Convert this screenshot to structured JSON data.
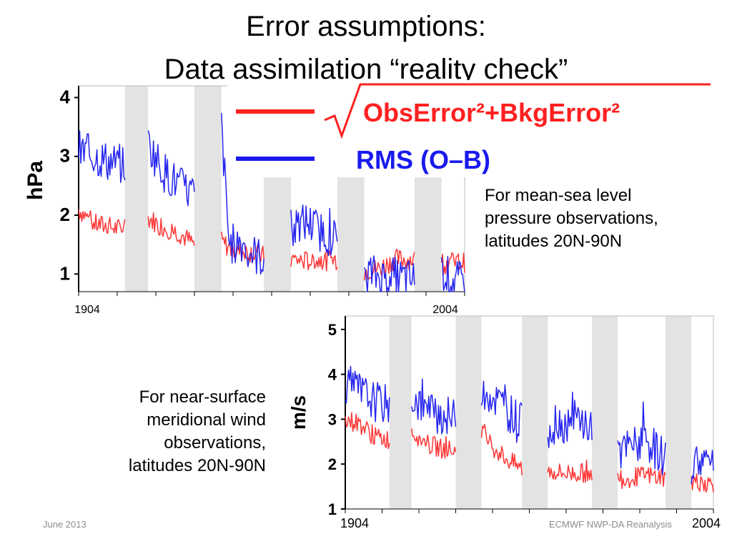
{
  "slide": {
    "title_line1": "Error assumptions:",
    "title_line2": "Data assimilation “reality check”",
    "caption_top": [
      "For mean-sea level",
      "pressure observations,",
      "latitudes 20N-90N"
    ],
    "caption_bottom": [
      "For near-surface",
      "meridional wind",
      "observations,",
      "latitudes 20N-90N"
    ],
    "footer_date": "June 2013",
    "footer_right": "ECMWF NWP-DA Reanalysis"
  },
  "colors": {
    "red": "#ff2020",
    "blue": "#1a1aee",
    "shade": "#e3e3e3"
  },
  "chart_data": [
    {
      "type": "line",
      "title": "",
      "ylabel": "hPa",
      "xlabel": "",
      "x_range": [
        1904,
        2004
      ],
      "x_tick_labels": [
        "1904",
        "2004"
      ],
      "ylim": [
        0.7,
        4.2
      ],
      "y_ticks": [
        1,
        2,
        3,
        4
      ],
      "legend_position": "top-right",
      "legend_text": [
        "√ObsError²+BkgError²",
        "RMS (O–B)"
      ],
      "shaded_periods": [
        [
          1916,
          1922
        ],
        [
          1934,
          1941
        ],
        [
          1952,
          1959
        ],
        [
          1971,
          1978
        ],
        [
          1991,
          1998
        ]
      ],
      "series": [
        {
          "name": "√ObsError²+BkgError²",
          "segments": [
            {
              "x": [
                1904,
                1908,
                1912,
                1916
              ],
              "y": [
                2.1,
                1.85,
                1.8,
                1.75
              ]
            },
            {
              "x": [
                1922,
                1926,
                1930,
                1934
              ],
              "y": [
                1.95,
                1.8,
                1.7,
                1.5
              ]
            },
            {
              "x": [
                1941,
                1944,
                1948,
                1952
              ],
              "y": [
                1.55,
                1.4,
                1.38,
                1.3
              ]
            },
            {
              "x": [
                1959,
                1963,
                1967,
                1971
              ],
              "y": [
                1.25,
                1.22,
                1.22,
                1.25
              ]
            },
            {
              "x": [
                1978,
                1982,
                1986,
                1991
              ],
              "y": [
                1.05,
                1.1,
                1.25,
                1.25
              ]
            },
            {
              "x": [
                1998,
                2001,
                2004
              ],
              "y": [
                1.2,
                1.2,
                1.2
              ]
            }
          ]
        },
        {
          "name": "RMS (O–B)",
          "segments": [
            {
              "x": [
                1904,
                1908,
                1912,
                1916
              ],
              "y": [
                3.1,
                3.0,
                2.9,
                2.85
              ]
            },
            {
              "x": [
                1922,
                1926,
                1930,
                1934
              ],
              "y": [
                3.2,
                2.75,
                2.5,
                2.35
              ]
            },
            {
              "x": [
                1941,
                1943,
                1946,
                1949,
                1952
              ],
              "y": [
                3.5,
                1.5,
                1.55,
                1.35,
                1.25
              ]
            },
            {
              "x": [
                1959,
                1963,
                1967,
                1971
              ],
              "y": [
                1.7,
                1.9,
                1.7,
                1.6
              ]
            },
            {
              "x": [
                1978,
                1982,
                1986,
                1991
              ],
              "y": [
                1.05,
                0.95,
                0.95,
                0.9
              ]
            },
            {
              "x": [
                1998,
                2001,
                2004
              ],
              "y": [
                1.05,
                0.9,
                0.85
              ]
            }
          ]
        }
      ]
    },
    {
      "type": "line",
      "title": "",
      "ylabel": "m/s",
      "xlabel": "",
      "x_range": [
        1904,
        2004
      ],
      "x_tick_labels": [
        "1904",
        "2004"
      ],
      "ylim": [
        1,
        5.3
      ],
      "y_ticks": [
        1,
        2,
        3,
        4,
        5
      ],
      "shaded_periods": [
        [
          1916,
          1922
        ],
        [
          1934,
          1941
        ],
        [
          1952,
          1959
        ],
        [
          1971,
          1978
        ],
        [
          1991,
          1998
        ]
      ],
      "series": [
        {
          "name": "√ObsError²+BkgError²",
          "segments": [
            {
              "x": [
                1904,
                1908,
                1912,
                1916
              ],
              "y": [
                3.0,
                2.9,
                2.6,
                2.55
              ]
            },
            {
              "x": [
                1922,
                1926,
                1930,
                1934
              ],
              "y": [
                2.75,
                2.45,
                2.35,
                2.3
              ]
            },
            {
              "x": [
                1941,
                1944,
                1948,
                1952
              ],
              "y": [
                2.8,
                2.4,
                2.1,
                1.9
              ]
            },
            {
              "x": [
                1959,
                1963,
                1967,
                1971
              ],
              "y": [
                1.85,
                1.8,
                1.8,
                1.8
              ]
            },
            {
              "x": [
                1978,
                1982,
                1986,
                1991
              ],
              "y": [
                1.65,
                1.7,
                1.75,
                1.7
              ]
            },
            {
              "x": [
                1998,
                2001,
                2004
              ],
              "y": [
                1.6,
                1.6,
                1.55
              ]
            }
          ]
        },
        {
          "name": "RMS (O–B)",
          "segments": [
            {
              "x": [
                1904,
                1908,
                1912,
                1916
              ],
              "y": [
                3.8,
                3.6,
                3.4,
                3.3
              ]
            },
            {
              "x": [
                1922,
                1926,
                1930,
                1934
              ],
              "y": [
                3.5,
                3.2,
                3.1,
                3.0
              ]
            },
            {
              "x": [
                1941,
                1944,
                1948,
                1952
              ],
              "y": [
                3.7,
                3.5,
                3.2,
                2.9
              ]
            },
            {
              "x": [
                1959,
                1963,
                1967,
                1971
              ],
              "y": [
                2.8,
                2.9,
                3.0,
                2.8
              ]
            },
            {
              "x": [
                1978,
                1982,
                1986,
                1991
              ],
              "y": [
                2.2,
                2.4,
                2.5,
                2.1
              ]
            },
            {
              "x": [
                1998,
                2001,
                2004
              ],
              "y": [
                2.0,
                2.1,
                2.1
              ]
            }
          ]
        }
      ]
    }
  ]
}
